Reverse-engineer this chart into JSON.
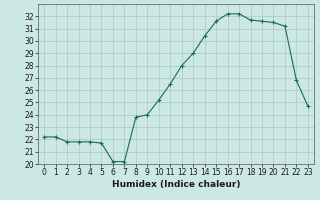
{
  "x": [
    0,
    1,
    2,
    3,
    4,
    5,
    6,
    7,
    8,
    9,
    10,
    11,
    12,
    13,
    14,
    15,
    16,
    17,
    18,
    19,
    20,
    21,
    22,
    23
  ],
  "y": [
    22.2,
    22.2,
    21.8,
    21.8,
    21.8,
    21.7,
    20.2,
    20.2,
    23.8,
    24.0,
    25.2,
    26.5,
    28.0,
    29.0,
    30.4,
    31.6,
    32.2,
    32.2,
    31.7,
    31.6,
    31.5,
    31.2,
    26.8,
    24.7
  ],
  "line_color": "#1a6b5a",
  "marker": "+",
  "marker_size": 3,
  "background_color": "#cce8e4",
  "grid_color": "#aac8c4",
  "xlabel": "Humidex (Indice chaleur)",
  "xlim": [
    -0.5,
    23.5
  ],
  "ylim": [
    20,
    33
  ],
  "yticks": [
    20,
    21,
    22,
    23,
    24,
    25,
    26,
    27,
    28,
    29,
    30,
    31,
    32
  ],
  "xticks": [
    0,
    1,
    2,
    3,
    4,
    5,
    6,
    7,
    8,
    9,
    10,
    11,
    12,
    13,
    14,
    15,
    16,
    17,
    18,
    19,
    20,
    21,
    22,
    23
  ],
  "tick_fontsize": 5.5,
  "xlabel_fontsize": 6.5,
  "label_color": "#1a1a1a"
}
